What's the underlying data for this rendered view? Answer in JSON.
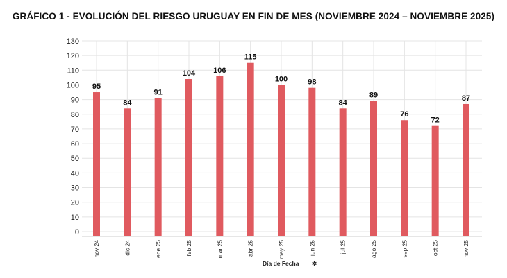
{
  "chart_data": {
    "type": "bar",
    "title": "GRÁFICO 1 - EVOLUCIÓN DEL RIESGO URUGUAY EN FIN DE MES (NOVIEMBRE 2024 – NOVIEMBRE 2025)",
    "xlabel": "Día de Fecha",
    "ylabel": "",
    "categories": [
      "nov 24",
      "dic 24",
      "ene 25",
      "feb 25",
      "mar 25",
      "abr 25",
      "may 25",
      "jun 25",
      "jul 25",
      "ago 25",
      "sep 25",
      "oct 25",
      "nov 25"
    ],
    "values": [
      95,
      84,
      91,
      104,
      106,
      115,
      100,
      98,
      84,
      89,
      76,
      72,
      87
    ],
    "yticks": [
      0,
      10,
      20,
      30,
      40,
      50,
      60,
      70,
      80,
      90,
      100,
      110,
      120,
      130
    ],
    "ylim": [
      0,
      130
    ],
    "grid": true,
    "legend": "none",
    "bar_color": "#e05a5f",
    "grid_color": "#e4e4e4"
  }
}
